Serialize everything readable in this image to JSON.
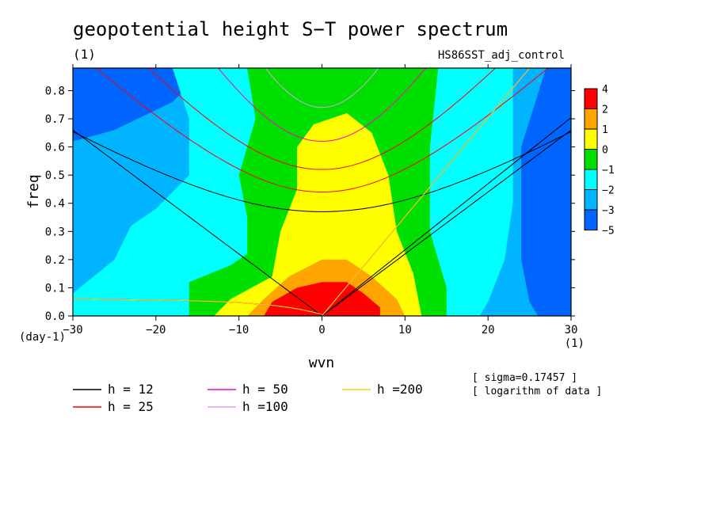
{
  "chart_data": {
    "type": "heatmap",
    "title": "geopotential height S−T power spectrum",
    "subtitle_left": "(1)",
    "subtitle_right": "HS86SST_adj_control",
    "xlabel": "wvn",
    "ylabel": "freq",
    "x_unit_label": "(1)",
    "y_unit_label": "(day-1)",
    "xlim": [
      -30,
      30
    ],
    "ylim": [
      0,
      0.88
    ],
    "xticks": [
      -30,
      -20,
      -10,
      0,
      10,
      20,
      30
    ],
    "xtick_labels": [
      "−30",
      "−20",
      "−10",
      "0",
      "10",
      "20",
      "30"
    ],
    "yticks": [
      0.0,
      0.1,
      0.2,
      0.3,
      0.4,
      0.5,
      0.6,
      0.7,
      0.8
    ],
    "ytick_labels": [
      "0.0",
      "0.1",
      "0.2",
      "0.3",
      "0.4",
      "0.5",
      "0.6",
      "0.7",
      "0.8"
    ],
    "colorbar": {
      "levels": [
        "4",
        "2",
        "1",
        "0",
        "−1",
        "−2",
        "−3",
        "−5"
      ],
      "colors": [
        "#ff0000",
        "#ffa500",
        "#ffff00",
        "#00e000",
        "#00ffff",
        "#00b4ff",
        "#0064ff"
      ]
    },
    "annotations": [
      "[ sigma=0.17457 ]",
      "[ logarithm of data ]"
    ],
    "dispersion_curves": [
      {
        "label": "h = 12",
        "color": "#000000"
      },
      {
        "label": "h = 25",
        "color": "#ff0000"
      },
      {
        "label": "h = 50",
        "color": "#ff00c0"
      },
      {
        "label": "h =100",
        "color": "#d8a0e8"
      },
      {
        "label": "h =200",
        "color": "#ffd000"
      }
    ],
    "field": {
      "description_levels": "log10 power contours, peak near wvn 0, freq 0",
      "contours": [
        {
          "level": "-3",
          "color": "#00b4ff",
          "points": [
            [
              -30,
              0
            ],
            [
              -30,
              0.62
            ],
            [
              -25,
              0.66
            ],
            [
              -18,
              0.76
            ],
            [
              -14,
              0.88
            ],
            [
              27,
              0.88
            ],
            [
              24,
              0.6
            ],
            [
              24,
              0.2
            ],
            [
              25,
              0.05
            ],
            [
              26,
              0
            ]
          ]
        },
        {
          "level": "-2",
          "color": "#00ffff",
          "points": [
            [
              -30,
              0
            ],
            [
              -30,
              0.08
            ],
            [
              -25,
              0.2
            ],
            [
              -23,
              0.32
            ],
            [
              -20,
              0.38
            ],
            [
              -16,
              0.5
            ],
            [
              -16,
              0.7
            ],
            [
              -18,
              0.88
            ],
            [
              23,
              0.88
            ],
            [
              23,
              0.4
            ],
            [
              22,
              0.2
            ],
            [
              20,
              0.05
            ],
            [
              19,
              0
            ]
          ]
        },
        {
          "level": "-1",
          "color": "#00e000",
          "points": [
            [
              -16,
              0
            ],
            [
              -16,
              0.12
            ],
            [
              -11,
              0.18
            ],
            [
              -9,
              0.22
            ],
            [
              -9,
              0.35
            ],
            [
              -10,
              0.5
            ],
            [
              -8,
              0.7
            ],
            [
              -9,
              0.88
            ],
            [
              14,
              0.88
            ],
            [
              13,
              0.6
            ],
            [
              13,
              0.3
            ],
            [
              15,
              0.1
            ],
            [
              15,
              0
            ]
          ]
        },
        {
          "level": "0",
          "color": "#ffff00",
          "points": [
            [
              -13,
              0
            ],
            [
              -11,
              0.06
            ],
            [
              -6,
              0.14
            ],
            [
              -5,
              0.3
            ],
            [
              -3,
              0.45
            ],
            [
              -3,
              0.6
            ],
            [
              -1,
              0.68
            ],
            [
              3,
              0.72
            ],
            [
              6,
              0.65
            ],
            [
              8,
              0.5
            ],
            [
              9,
              0.3
            ],
            [
              11,
              0.15
            ],
            [
              12,
              0
            ]
          ]
        },
        {
          "level": "1",
          "color": "#ffa500",
          "points": [
            [
              -9,
              0
            ],
            [
              -7,
              0.06
            ],
            [
              -4,
              0.14
            ],
            [
              0,
              0.2
            ],
            [
              3,
              0.2
            ],
            [
              6,
              0.14
            ],
            [
              9,
              0.06
            ],
            [
              10,
              0
            ]
          ]
        },
        {
          "level": "2",
          "color": "#ff0000",
          "points": [
            [
              -7,
              0
            ],
            [
              -6,
              0.05
            ],
            [
              -3,
              0.1
            ],
            [
              0,
              0.12
            ],
            [
              3,
              0.12
            ],
            [
              5,
              0.08
            ],
            [
              7,
              0.03
            ],
            [
              7,
              0
            ]
          ]
        }
      ]
    }
  }
}
